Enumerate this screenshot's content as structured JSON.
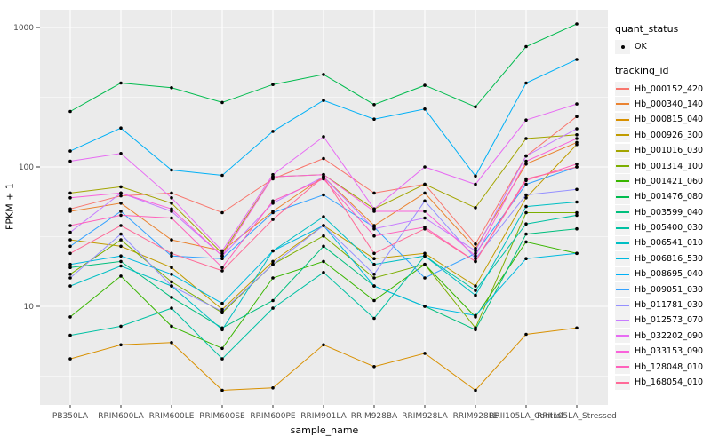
{
  "colors": {
    "panel_bg": "#EBEBEB",
    "grid_major": "#FFFFFF",
    "grid_minor": "#F7F7F7",
    "axis_text": "#4D4D4D",
    "tick_mark": "#333333",
    "legend_key_bg": "#F2F2F2",
    "point_marker": "#000000",
    "background": "#FFFFFF"
  },
  "legend": {
    "quant_status_title": "quant_status",
    "quant_status_items": [
      {
        "label": "OK",
        "marker": "black-point"
      }
    ],
    "tracking_id_title": "tracking_id"
  },
  "axes": {
    "y_title": "FPKM + 1",
    "x_title": "sample_name",
    "y_tick_labels": [
      "10",
      "100",
      "1000"
    ]
  },
  "chart_data": {
    "type": "line",
    "title": "",
    "xlabel": "sample_name",
    "ylabel": "FPKM + 1",
    "y_scale": "log10",
    "ylim": [
      2,
      1340
    ],
    "y_ticks": [
      10,
      100,
      1000
    ],
    "y_minor_ticks": [
      3.162,
      31.62,
      316.2
    ],
    "grid": true,
    "legend_position": "right",
    "point_marker_meaning": "quant_status = OK (black point at every vertex)",
    "categories": [
      "PB350LA",
      "RRIM600LA",
      "RRIM600LE",
      "RRIM600SE",
      "RRIM600PE",
      "RRIM901LA",
      "RRIM928BA",
      "RRIM928LA",
      "RRIM928LE",
      "RRII105LA_Control",
      "RRII105LA_Stressed"
    ],
    "series": [
      {
        "name": "Hb_000152_420",
        "color": "#F8766D",
        "values": [
          50,
          62,
          65,
          47,
          82,
          115,
          65,
          75,
          28,
          120,
          230
        ]
      },
      {
        "name": "Hb_000340_140",
        "color": "#EA8331",
        "values": [
          48,
          55,
          30,
          25,
          48,
          85,
          38,
          65,
          26,
          105,
          150
        ]
      },
      {
        "name": "Hb_000815_040",
        "color": "#D89000",
        "values": [
          4.2,
          5.3,
          5.5,
          2.5,
          2.6,
          5.3,
          3.7,
          4.6,
          2.5,
          6.3,
          7
        ]
      },
      {
        "name": "Hb_000926_300",
        "color": "#C09B00",
        "values": [
          30,
          27,
          19,
          9.5,
          21,
          38,
          22,
          24,
          14,
          60,
          145
        ]
      },
      {
        "name": "Hb_001016_030",
        "color": "#A3A500",
        "values": [
          65,
          72,
          55,
          24,
          85,
          88,
          50,
          75,
          51,
          160,
          170
        ]
      },
      {
        "name": "Hb_001314_100",
        "color": "#7CAE00",
        "values": [
          17,
          30,
          15,
          9,
          20,
          32,
          16,
          20,
          7,
          47,
          47
        ]
      },
      {
        "name": "Hb_001421_060",
        "color": "#39B600",
        "values": [
          8.4,
          16.5,
          7.2,
          5,
          16,
          21,
          11,
          20,
          8.4,
          29,
          24
        ]
      },
      {
        "name": "Hb_001476_080",
        "color": "#00BB4E",
        "values": [
          250,
          400,
          370,
          290,
          390,
          460,
          280,
          385,
          270,
          730,
          1060
        ]
      },
      {
        "name": "Hb_003599_040",
        "color": "#00BF7D",
        "values": [
          19,
          21,
          11.6,
          7,
          11,
          27,
          14,
          10,
          6.8,
          33,
          36
        ]
      },
      {
        "name": "Hb_005400_030",
        "color": "#00C1A3",
        "values": [
          6.2,
          7.2,
          9.7,
          4.2,
          9.7,
          17.5,
          8.2,
          23,
          13,
          39,
          45
        ]
      },
      {
        "name": "Hb_006541_010",
        "color": "#00BFC4",
        "values": [
          14,
          19.5,
          14,
          6.8,
          25,
          44,
          20,
          23,
          12,
          52,
          56
        ]
      },
      {
        "name": "Hb_006816_530",
        "color": "#00BAE0",
        "values": [
          20,
          23,
          17,
          10.5,
          25,
          38,
          14,
          10,
          8.6,
          22,
          24
        ]
      },
      {
        "name": "Hb_008695_040",
        "color": "#00B0F6",
        "values": [
          130,
          190,
          95,
          87,
          180,
          300,
          220,
          260,
          86,
          400,
          590
        ]
      },
      {
        "name": "Hb_009051_030",
        "color": "#35A2FF",
        "values": [
          27,
          48,
          23,
          22,
          47,
          63,
          37,
          16,
          24,
          75,
          100
        ]
      },
      {
        "name": "Hb_011781_030",
        "color": "#9590FF",
        "values": [
          16,
          33,
          14,
          9.2,
          20,
          38,
          17,
          57,
          22,
          63,
          69
        ]
      },
      {
        "name": "Hb_012573_070",
        "color": "#C77CFF",
        "values": [
          34,
          65,
          48,
          23,
          55,
          85,
          36,
          43,
          25,
          120,
          188
        ]
      },
      {
        "name": "Hb_032202_090",
        "color": "#E76BF3",
        "values": [
          110,
          125,
          60,
          25,
          88,
          165,
          50,
          100,
          75,
          217,
          283
        ]
      },
      {
        "name": "Hb_033153_090",
        "color": "#FA62DB",
        "values": [
          60,
          65,
          50,
          23,
          85,
          88,
          48,
          48,
          23,
          110,
          160
        ]
      },
      {
        "name": "Hb_128048_010",
        "color": "#FF62BC",
        "values": [
          38,
          45,
          43,
          19,
          57,
          82,
          32,
          37,
          21,
          80,
          105
        ]
      },
      {
        "name": "Hb_168054_010",
        "color": "#FF6A98",
        "values": [
          24,
          38,
          24,
          18,
          42,
          85,
          24,
          36,
          21,
          82,
          100
        ]
      }
    ]
  }
}
